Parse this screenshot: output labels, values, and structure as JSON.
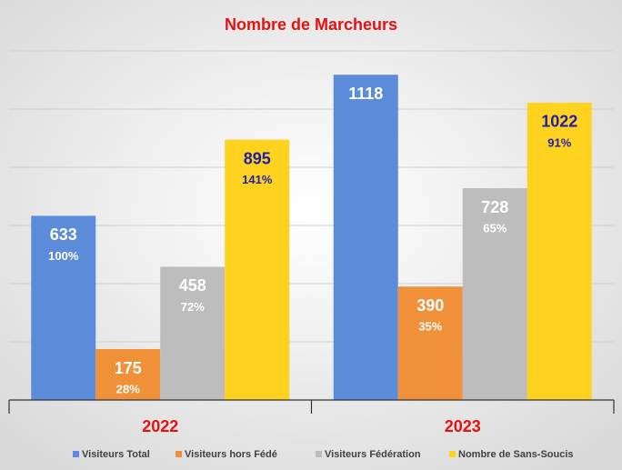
{
  "chart_data": {
    "type": "bar",
    "title": "Nombre de Marcheurs",
    "categories": [
      "2022",
      "2023"
    ],
    "series": [
      {
        "name": "Visiteurs Total",
        "color": "#5b8bd9",
        "label_color": "#ffffff",
        "values": [
          633,
          1118
        ],
        "shares": [
          "100%",
          null
        ]
      },
      {
        "name": "Visiteurs hors Fédé",
        "color": "#f0913a",
        "label_color": "#ffffff",
        "values": [
          175,
          390
        ],
        "shares": [
          "28%",
          "35%"
        ]
      },
      {
        "name": "Visiteurs Fédération",
        "color": "#bdbdbd",
        "label_color": "#ffffff",
        "values": [
          458,
          728
        ],
        "shares": [
          "72%",
          "65%"
        ]
      },
      {
        "name": "Nombre de Sans-Soucis",
        "color": "#ffd21f",
        "label_color": "#1f1fa8",
        "values": [
          895,
          1022
        ],
        "shares": [
          "141%",
          "91%"
        ]
      }
    ],
    "ylim": [
      0,
      1200
    ],
    "yticks": [
      0,
      200,
      400,
      600,
      800,
      1000,
      1200
    ],
    "grid": true,
    "title_color": "#e81010",
    "category_color": "#e81010"
  }
}
